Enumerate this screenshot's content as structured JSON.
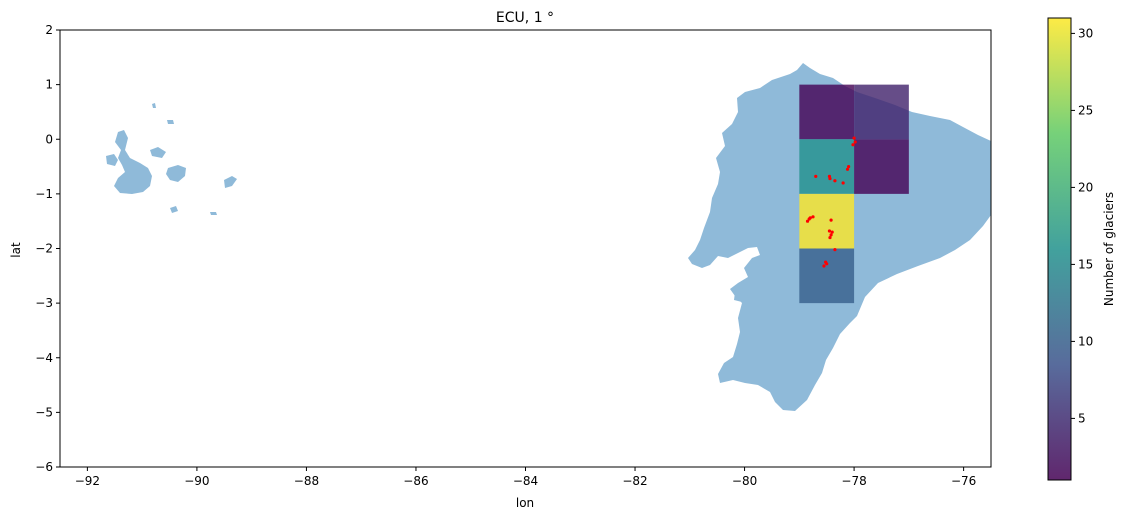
{
  "chart_data": {
    "type": "heatmap",
    "title": "ECU, 1 °",
    "xlabel": "lon",
    "ylabel": "lat",
    "xlim": [
      -92.5,
      -75.5
    ],
    "ylim": [
      -6,
      2
    ],
    "xticks": [
      -92,
      -90,
      -88,
      -86,
      -84,
      -82,
      -80,
      -78,
      -76
    ],
    "xtick_labels": [
      "−92",
      "−90",
      "−88",
      "−86",
      "−84",
      "−82",
      "−80",
      "−78",
      "−76"
    ],
    "yticks": [
      2,
      1,
      0,
      -1,
      -2,
      -3,
      -4,
      -5,
      -6
    ],
    "ytick_labels": [
      "2",
      "1",
      "0",
      "−1",
      "−2",
      "−3",
      "−4",
      "−5",
      "−6"
    ],
    "grid": false,
    "colorbar": {
      "label": "Number of glaciers",
      "range": [
        1,
        31
      ],
      "ticks": [
        5,
        10,
        15,
        20,
        25,
        30
      ],
      "tick_labels": [
        "5",
        "10",
        "15",
        "20",
        "25",
        "30"
      ],
      "colormap": "viridis"
    },
    "cells": [
      {
        "lon": -79,
        "lat": 0,
        "count": 1
      },
      {
        "lon": -78,
        "lat": 0,
        "count": 4
      },
      {
        "lon": -79,
        "lat": -1,
        "count": 16
      },
      {
        "lon": -78,
        "lat": -1,
        "count": 1
      },
      {
        "lon": -79,
        "lat": -2,
        "count": 31
      },
      {
        "lon": -79,
        "lat": -3,
        "count": 10
      }
    ],
    "glacier_points": [
      [
        -78.0,
        0.02
      ],
      [
        -77.98,
        -0.05
      ],
      [
        -78.02,
        -0.1
      ],
      [
        -78.1,
        -0.5
      ],
      [
        -78.12,
        -0.55
      ],
      [
        -78.45,
        -0.68
      ],
      [
        -78.44,
        -0.72
      ],
      [
        -78.35,
        -0.76
      ],
      [
        -78.2,
        -0.8
      ],
      [
        -78.7,
        -0.68
      ],
      [
        -78.8,
        -1.44
      ],
      [
        -78.85,
        -1.5
      ],
      [
        -78.82,
        -1.46
      ],
      [
        -78.75,
        -1.42
      ],
      [
        -78.45,
        -1.68
      ],
      [
        -78.42,
        -1.75
      ],
      [
        -78.4,
        -1.7
      ],
      [
        -78.44,
        -1.8
      ],
      [
        -78.42,
        -1.48
      ],
      [
        -78.35,
        -2.02
      ],
      [
        -78.5,
        -2.28
      ],
      [
        -78.55,
        -2.32
      ],
      [
        -78.52,
        -2.25
      ]
    ],
    "colors": {
      "land": "#8fbad9",
      "glacier_point": "#ff0000"
    }
  }
}
